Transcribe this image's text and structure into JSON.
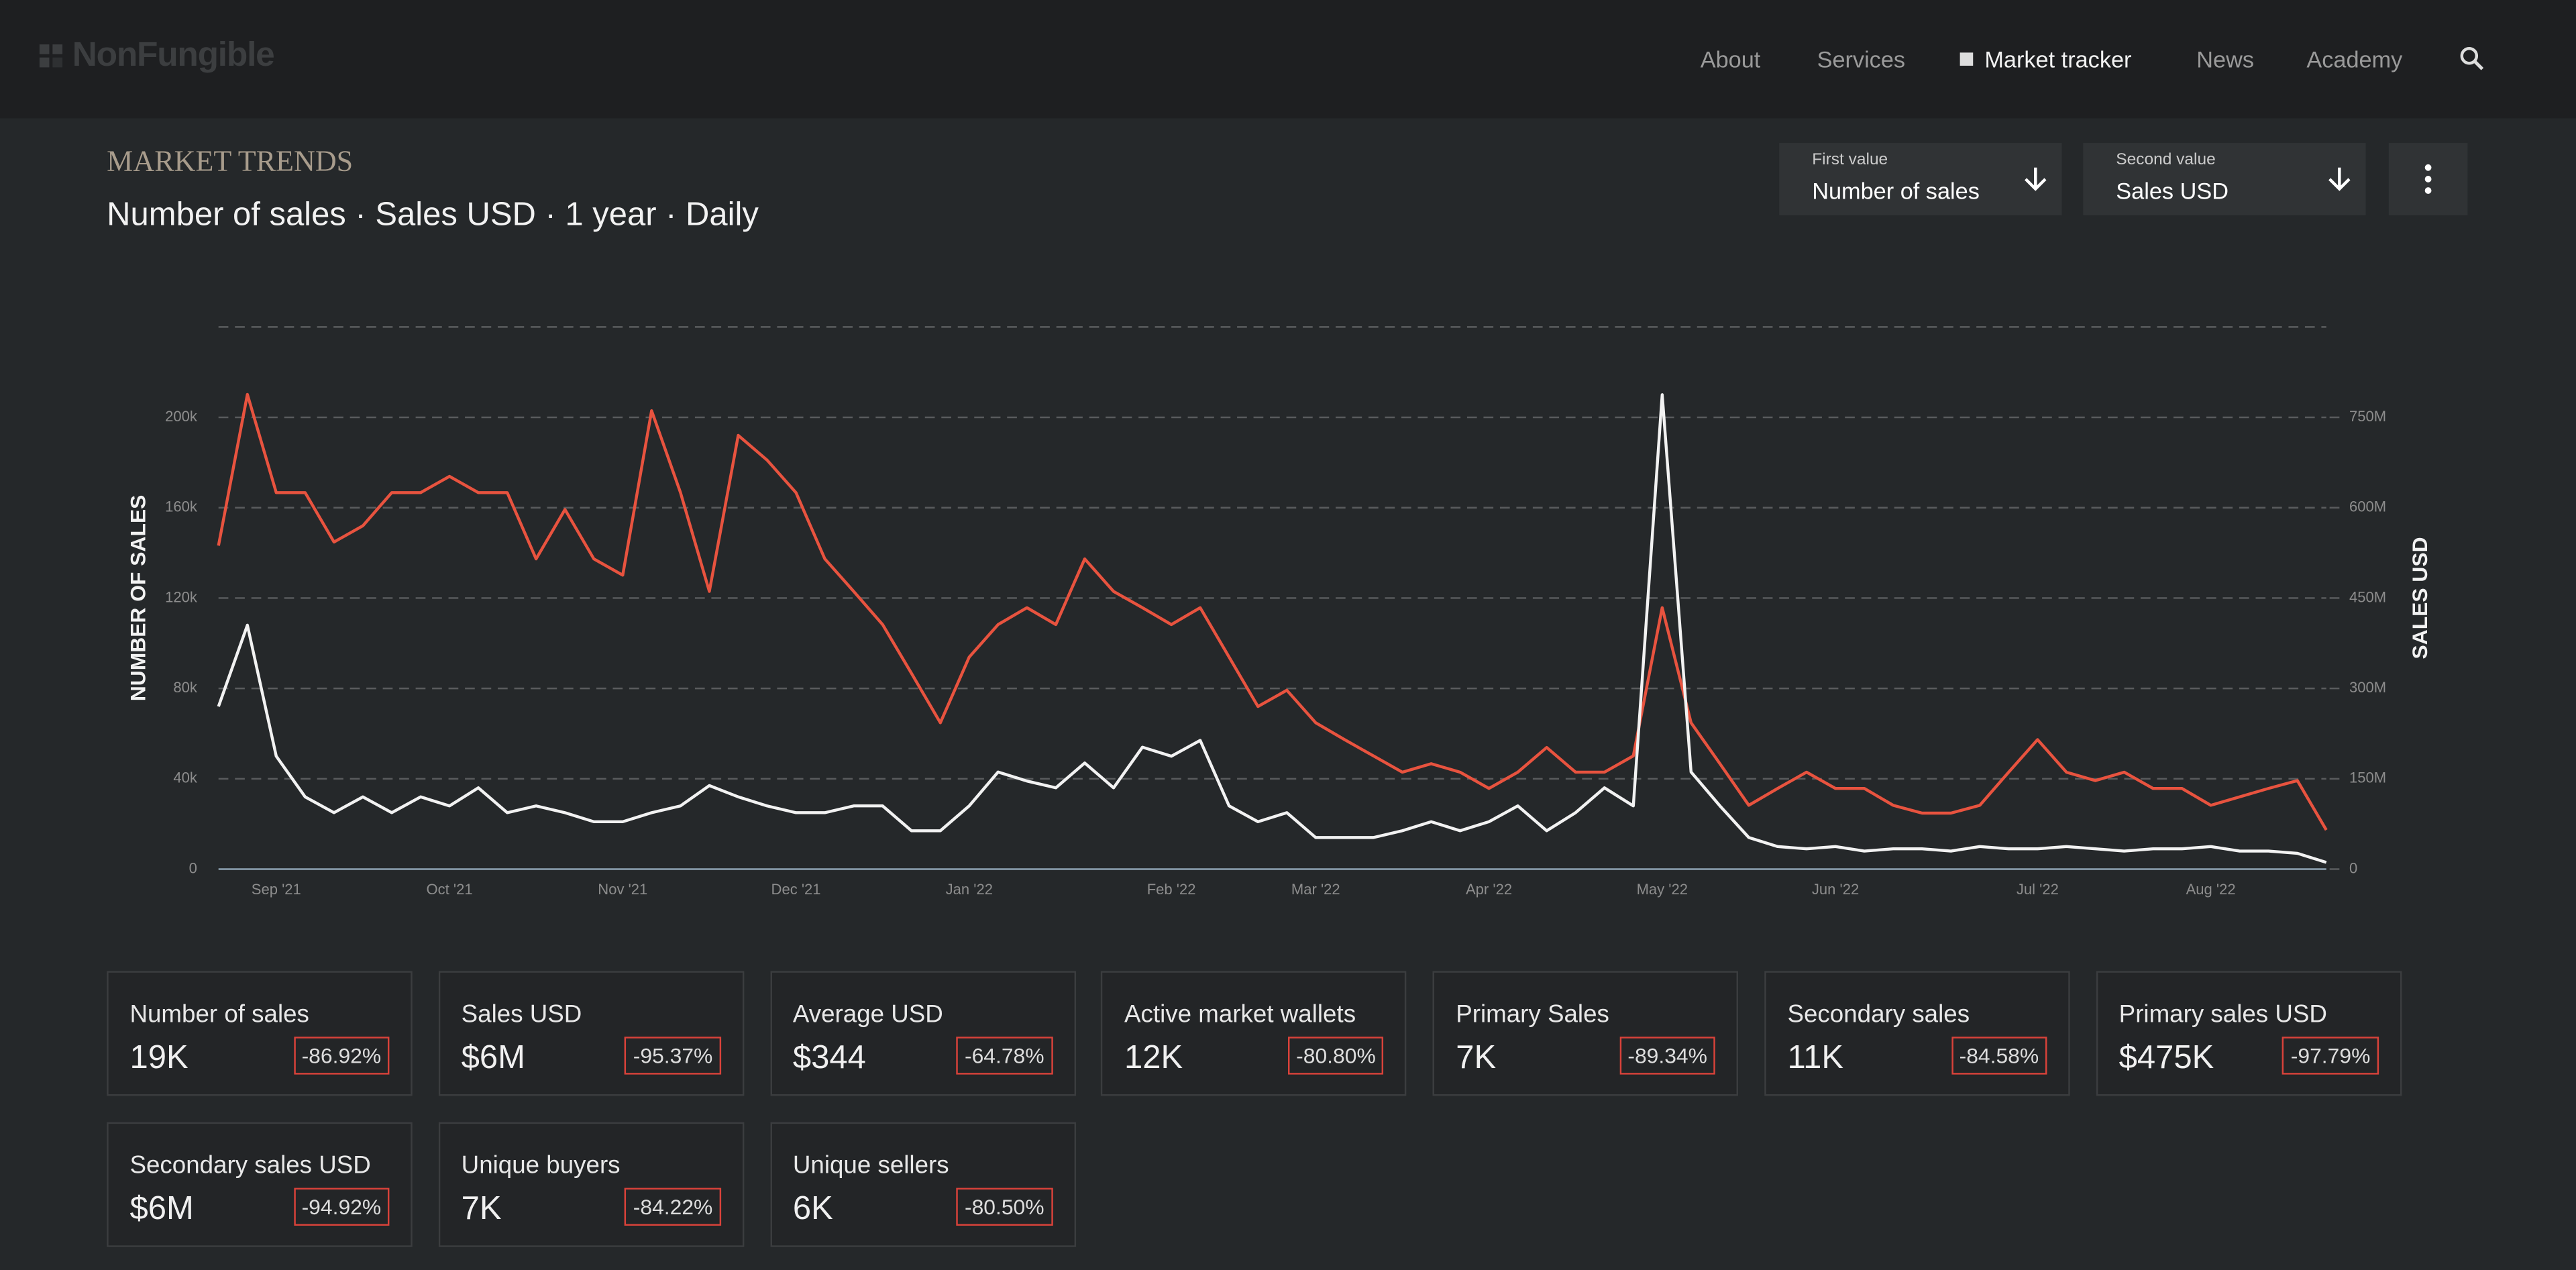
{
  "nav": {
    "logo": "NonFungible",
    "items": [
      "About",
      "Services",
      "Market tracker",
      "News",
      "Academy"
    ]
  },
  "controls": {
    "first_label": "First value",
    "second_label": "Second value"
  },
  "chart_data": {
    "type": "line",
    "title": "MARKET TRENDS",
    "subtitle": "Number of sales · Sales USD · 1 year · Daily",
    "y_label": "NUMBER OF SALES",
    "y2_label": "SALES USD",
    "categories": [
      null,
      null,
      "Sep '21",
      null,
      null,
      null,
      null,
      null,
      "Oct '21",
      null,
      null,
      null,
      null,
      null,
      "Nov '21",
      null,
      null,
      null,
      null,
      null,
      "Dec '21",
      null,
      null,
      null,
      null,
      null,
      "Jan '22",
      null,
      null,
      null,
      null,
      null,
      null,
      "Feb '22",
      null,
      null,
      null,
      null,
      "Mar '22",
      null,
      null,
      null,
      null,
      null,
      "Apr '22",
      null,
      null,
      null,
      null,
      null,
      "May '22",
      null,
      null,
      null,
      null,
      null,
      "Jun '22",
      null,
      null,
      null,
      null,
      null,
      null,
      "Jul '22",
      null,
      null,
      null,
      null,
      null,
      "Aug '22",
      null,
      null,
      null,
      null
    ],
    "series": [
      {
        "name": "Number of sales",
        "color": "#f2f2f2",
        "axis": "y",
        "values": [
          72000,
          108000,
          50000,
          32000,
          25000,
          32000,
          25000,
          32000,
          28000,
          36000,
          25000,
          28000,
          25000,
          21000,
          21000,
          25000,
          28000,
          37000,
          32000,
          28000,
          25000,
          25000,
          28000,
          28000,
          17000,
          17000,
          28000,
          43000,
          39000,
          36000,
          47000,
          36000,
          54000,
          50000,
          57000,
          28000,
          21000,
          25000,
          14000,
          14000,
          14000,
          17000,
          21000,
          17000,
          21000,
          28000,
          17000,
          25000,
          36000,
          28000,
          210000,
          43000,
          28000,
          14000,
          10000,
          9000,
          10000,
          8000,
          9000,
          9000,
          8000,
          10000,
          9000,
          9000,
          10000,
          9000,
          8000,
          9000,
          9000,
          10000,
          8000,
          8000,
          7000,
          3000
        ]
      },
      {
        "name": "Sales USD",
        "color": "#e8533f",
        "axis": "y2",
        "values": [
          537000000,
          788000000,
          625000000,
          625000000,
          543000000,
          570000000,
          625000000,
          625000000,
          652000000,
          625000000,
          625000000,
          515000000,
          597000000,
          515000000,
          488000000,
          761000000,
          625000000,
          461000000,
          720000000,
          679000000,
          625000000,
          515000000,
          461000000,
          406000000,
          325000000,
          243000000,
          352000000,
          406000000,
          434000000,
          406000000,
          515000000,
          461000000,
          434000000,
          406000000,
          434000000,
          352000000,
          270000000,
          297000000,
          243000000,
          215000000,
          188000000,
          161000000,
          175000000,
          161000000,
          134000000,
          161000000,
          202000000,
          161000000,
          161000000,
          188000000,
          434000000,
          243000000,
          175000000,
          106000000,
          134000000,
          161000000,
          134000000,
          134000000,
          106000000,
          93000000,
          93000000,
          106000000,
          161000000,
          215000000,
          161000000,
          147000000,
          161000000,
          134000000,
          134000000,
          106000000,
          120000000,
          134000000,
          147000000,
          65000000
        ]
      }
    ],
    "ylim": [
      0,
      240000
    ],
    "yticks": [
      0,
      {
        "value": 40000,
        "label": "40k"
      },
      {
        "value": 80000,
        "label": "80k"
      },
      {
        "value": 120000,
        "label": "120k"
      },
      {
        "value": 160000,
        "label": "160k"
      },
      {
        "value": 200000,
        "label": "200k"
      }
    ],
    "y2lim": [
      0,
      900000000
    ],
    "y2ticks": [
      0,
      {
        "value": 150000000,
        "label": "150M"
      },
      {
        "value": 300000000,
        "label": "300M"
      },
      {
        "value": 450000000,
        "label": "450M"
      },
      {
        "value": 600000000,
        "label": "600M"
      },
      {
        "value": 750000000,
        "label": "750M"
      }
    ],
    "grid": true
  },
  "stats": [
    {
      "label": "Number of sales",
      "value": "19K",
      "change": "-86.92%"
    },
    {
      "label": "Sales USD",
      "value": "$6M",
      "change": "-95.37%"
    },
    {
      "label": "Average USD",
      "value": "$344",
      "change": "-64.78%"
    },
    {
      "label": "Active market wallets",
      "value": "12K",
      "change": "-80.80%"
    },
    {
      "label": "Primary Sales",
      "value": "7K",
      "change": "-89.34%"
    },
    {
      "label": "Secondary sales",
      "value": "11K",
      "change": "-84.58%"
    },
    {
      "label": "Primary sales USD",
      "value": "$475K",
      "change": "-97.79%"
    },
    {
      "label": "Secondary sales USD",
      "value": "$6M",
      "change": "-94.92%"
    },
    {
      "label": "Unique buyers",
      "value": "7K",
      "change": "-84.22%"
    },
    {
      "label": "Unique sellers",
      "value": "6K",
      "change": "-80.50%"
    }
  ]
}
